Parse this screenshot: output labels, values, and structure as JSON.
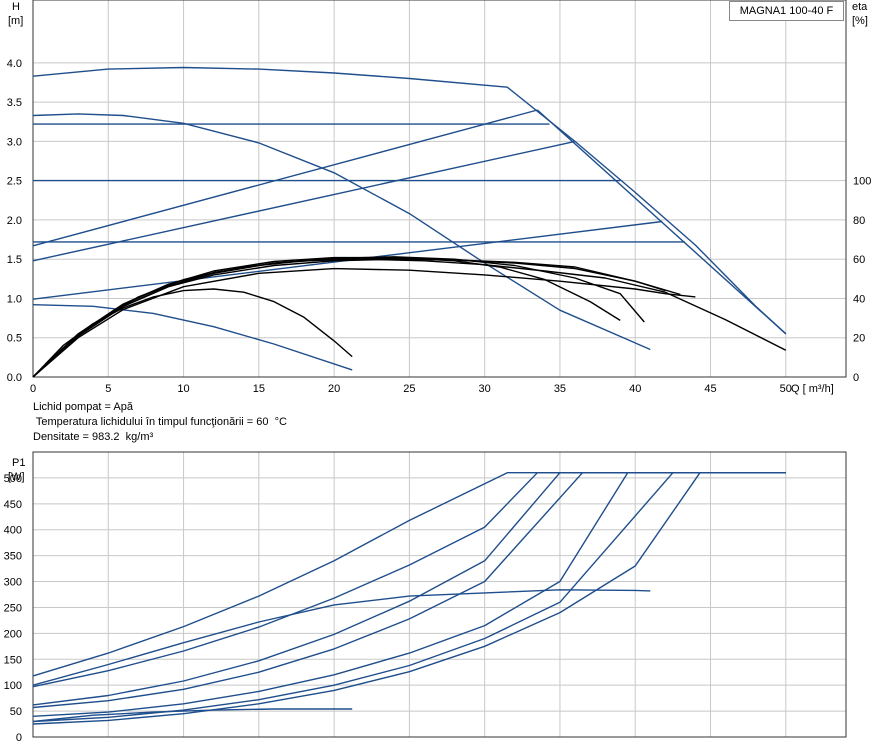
{
  "product_label": "MAGNA1 100-40 F",
  "notes": {
    "liquid": "Lichid pompat = Apă",
    "temperature": " Temperatura lichidului în timpul funcţionării = 60  °C",
    "density": "Densitate = 983.2  kg/m³"
  },
  "colors": {
    "blue": "#1f4e8c",
    "black": "#000000",
    "grid": "#c8c8c8",
    "axis": "#333333"
  },
  "chart_data": [
    {
      "type": "line",
      "axes_text": {
        "y_left": [
          "H",
          "[m]"
        ],
        "y_right": [
          "eta",
          "[%]"
        ],
        "x": "Q [ m³/h]"
      },
      "xlim": [
        0,
        54
      ],
      "ylim": [
        0,
        4.8
      ],
      "eta_lim": [
        0,
        192
      ],
      "x_ticks": [
        0,
        5,
        10,
        15,
        20,
        25,
        30,
        35,
        40,
        45,
        50
      ],
      "y_ticks": [
        0.0,
        0.5,
        1.0,
        1.5,
        2.0,
        2.5,
        3.0,
        3.5,
        4.0
      ],
      "y_tick_labels": [
        "0.0",
        "0.5",
        "1.0",
        "1.5",
        "2.0",
        "2.5",
        "3.0",
        "3.5",
        "4.0"
      ],
      "eta_ticks": [
        0,
        20,
        40,
        60,
        80,
        100
      ],
      "grid": true,
      "series": [
        {
          "color": "blue",
          "x": [
            0,
            5,
            10,
            15,
            20,
            25,
            31.5,
            36,
            40,
            44,
            48,
            50
          ],
          "y": [
            3.83,
            3.92,
            3.94,
            3.92,
            3.87,
            3.8,
            3.69,
            3.0,
            2.35,
            1.68,
            0.9,
            0.55
          ]
        },
        {
          "color": "blue",
          "x": [
            0,
            3,
            6,
            10,
            15,
            20,
            25,
            30,
            35,
            41
          ],
          "y": [
            3.33,
            3.35,
            3.33,
            3.23,
            2.98,
            2.6,
            2.08,
            1.45,
            0.85,
            0.35
          ]
        },
        {
          "color": "blue",
          "x": [
            0,
            34.3
          ],
          "y": [
            3.22,
            3.22
          ]
        },
        {
          "color": "blue",
          "x": [
            0,
            39
          ],
          "y": [
            2.5,
            2.5
          ]
        },
        {
          "color": "blue",
          "x": [
            0,
            43.3
          ],
          "y": [
            1.72,
            1.72
          ]
        },
        {
          "color": "blue",
          "x": [
            0,
            4,
            8,
            12,
            16,
            21.2
          ],
          "y": [
            0.92,
            0.9,
            0.81,
            0.64,
            0.42,
            0.09
          ]
        },
        {
          "color": "blue",
          "x": [
            0,
            33.5
          ],
          "y": [
            1.67,
            3.4
          ]
        },
        {
          "color": "blue",
          "x": [
            0,
            36
          ],
          "y": [
            1.48,
            3.0
          ]
        },
        {
          "color": "blue",
          "x": [
            0,
            41.8
          ],
          "y": [
            0.99,
            1.98
          ]
        },
        {
          "color": "blue",
          "x": [
            33.5,
            50
          ],
          "y": [
            3.4,
            0.55
          ]
        },
        {
          "color": "black",
          "x": [
            0,
            2,
            4,
            7,
            10,
            14,
            18,
            22,
            26,
            30,
            34,
            38,
            42,
            46,
            50
          ],
          "y": [
            0,
            0.37,
            0.67,
            1.02,
            1.24,
            1.4,
            1.48,
            1.5,
            1.48,
            1.43,
            1.35,
            1.26,
            1.08,
            0.73,
            0.34
          ]
        },
        {
          "color": "black",
          "x": [
            0,
            3,
            6,
            9,
            12,
            16,
            20,
            24,
            28,
            32,
            36,
            40,
            43
          ],
          "y": [
            0,
            0.55,
            0.93,
            1.18,
            1.33,
            1.45,
            1.5,
            1.51,
            1.49,
            1.45,
            1.38,
            1.22,
            1.05
          ]
        },
        {
          "color": "black",
          "x": [
            0,
            3,
            6,
            9,
            12,
            16,
            20,
            24,
            28,
            32,
            36,
            40,
            42
          ],
          "y": [
            0,
            0.52,
            0.9,
            1.15,
            1.3,
            1.42,
            1.48,
            1.5,
            1.49,
            1.46,
            1.4,
            1.22,
            1.1
          ]
        },
        {
          "color": "black",
          "x": [
            0,
            3,
            6,
            9,
            12,
            16,
            20,
            24,
            28,
            32,
            36,
            39,
            40.6
          ],
          "y": [
            0,
            0.52,
            0.9,
            1.16,
            1.32,
            1.45,
            1.51,
            1.53,
            1.5,
            1.42,
            1.26,
            1.06,
            0.7
          ]
        },
        {
          "color": "black",
          "x": [
            0,
            3,
            6,
            9,
            12,
            16,
            20,
            24,
            28,
            31,
            34,
            37,
            39
          ],
          "y": [
            0,
            0.54,
            0.92,
            1.18,
            1.35,
            1.47,
            1.52,
            1.52,
            1.48,
            1.4,
            1.24,
            0.96,
            0.72
          ]
        },
        {
          "color": "black",
          "x": [
            0,
            2,
            4,
            6,
            8,
            10,
            12,
            14,
            16,
            18,
            20,
            21.2
          ],
          "y": [
            0,
            0.4,
            0.68,
            0.88,
            1.02,
            1.1,
            1.12,
            1.08,
            0.96,
            0.76,
            0.46,
            0.26
          ]
        },
        {
          "color": "black",
          "x": [
            0,
            3,
            6,
            10,
            15,
            20,
            25,
            30,
            35,
            40,
            42,
            44
          ],
          "y": [
            0,
            0.5,
            0.86,
            1.15,
            1.32,
            1.38,
            1.36,
            1.3,
            1.22,
            1.12,
            1.06,
            1.02
          ]
        }
      ]
    },
    {
      "type": "line",
      "axes_text": {
        "y_left": [
          "P1",
          "[W]"
        ]
      },
      "xlim": [
        0,
        54
      ],
      "ylim": [
        0,
        550
      ],
      "x_ticks": [
        0,
        5,
        10,
        15,
        20,
        25,
        30,
        35,
        40,
        45,
        50
      ],
      "y_ticks": [
        0,
        50,
        100,
        150,
        200,
        250,
        300,
        350,
        400,
        450,
        500
      ],
      "grid": true,
      "series": [
        {
          "color": "blue",
          "x": [
            0,
            5,
            10,
            15,
            20,
            25,
            31.5,
            50
          ],
          "y": [
            118,
            162,
            213,
            272,
            340,
            418,
            510,
            510
          ]
        },
        {
          "color": "blue",
          "x": [
            0,
            5,
            10,
            15,
            20,
            25,
            30,
            33.5,
            50
          ],
          "y": [
            97,
            128,
            166,
            212,
            268,
            332,
            405,
            510,
            510
          ]
        },
        {
          "color": "blue",
          "x": [
            0,
            5,
            10,
            15,
            20,
            25,
            30,
            35,
            50
          ],
          "y": [
            62,
            80,
            108,
            147,
            198,
            262,
            340,
            510,
            510
          ]
        },
        {
          "color": "blue",
          "x": [
            0,
            5,
            10,
            15,
            20,
            25,
            30,
            36.5,
            50
          ],
          "y": [
            57,
            70,
            92,
            125,
            170,
            228,
            300,
            510,
            510
          ]
        },
        {
          "color": "blue",
          "x": [
            0,
            5,
            10,
            15,
            20,
            25,
            30,
            35,
            39.5,
            50
          ],
          "y": [
            40,
            48,
            64,
            88,
            120,
            162,
            215,
            300,
            510,
            510
          ]
        },
        {
          "color": "blue",
          "x": [
            0,
            5,
            10,
            15,
            20,
            25,
            30,
            35,
            42.5,
            50
          ],
          "y": [
            30,
            38,
            52,
            72,
            100,
            138,
            190,
            260,
            510,
            510
          ]
        },
        {
          "color": "blue",
          "x": [
            0,
            5,
            10,
            15,
            20,
            25,
            30,
            35,
            40,
            44.3,
            50
          ],
          "y": [
            25,
            32,
            45,
            64,
            90,
            126,
            175,
            240,
            330,
            510,
            510
          ]
        },
        {
          "color": "blue",
          "x": [
            0,
            5,
            10,
            15,
            20,
            25,
            30,
            35,
            40,
            41
          ],
          "y": [
            100,
            140,
            182,
            222,
            255,
            272,
            278,
            284,
            283,
            282
          ]
        },
        {
          "color": "blue",
          "x": [
            0,
            4,
            8,
            12,
            16,
            21.2
          ],
          "y": [
            30,
            42,
            48,
            52,
            54,
            54
          ]
        }
      ]
    }
  ]
}
